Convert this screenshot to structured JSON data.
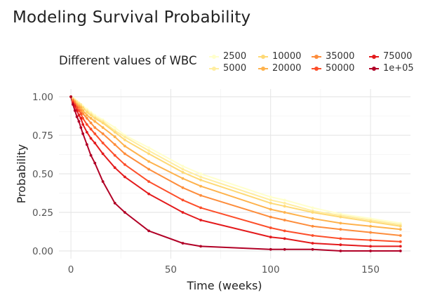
{
  "chart_data": {
    "type": "line",
    "title": "Modeling Survival Probability",
    "xlabel": "Time (weeks)",
    "ylabel": "Probability",
    "xlim": [
      -6,
      170
    ],
    "ylim": [
      -0.05,
      1.05
    ],
    "xticks": [
      0,
      50,
      100,
      150
    ],
    "xtick_labels": [
      "0",
      "50",
      "100",
      "150"
    ],
    "yticks": [
      0,
      0.25,
      0.5,
      0.75,
      1
    ],
    "ytick_labels": [
      "0.00",
      "0.25",
      "0.50",
      "0.75",
      "1.00"
    ],
    "grid": true,
    "legend": {
      "title": "Different values of WBC",
      "position": "top"
    },
    "x": [
      0,
      1,
      2,
      3,
      4,
      5,
      6,
      8,
      10,
      12,
      16,
      22,
      27,
      39,
      56,
      65,
      100,
      107,
      121,
      135,
      150,
      165
    ],
    "series": [
      {
        "name": "2500",
        "color": "#ffffcc",
        "values": [
          1.0,
          0.99,
          0.98,
          0.97,
          0.96,
          0.95,
          0.94,
          0.92,
          0.9,
          0.88,
          0.85,
          0.8,
          0.75,
          0.67,
          0.55,
          0.5,
          0.35,
          0.33,
          0.28,
          0.24,
          0.21,
          0.18
        ]
      },
      {
        "name": "5000",
        "color": "#ffeda0",
        "values": [
          1.0,
          0.99,
          0.98,
          0.97,
          0.96,
          0.95,
          0.93,
          0.91,
          0.89,
          0.87,
          0.84,
          0.78,
          0.74,
          0.65,
          0.53,
          0.48,
          0.33,
          0.31,
          0.26,
          0.23,
          0.2,
          0.17
        ]
      },
      {
        "name": "10000",
        "color": "#fed976",
        "values": [
          1.0,
          0.98,
          0.97,
          0.96,
          0.95,
          0.94,
          0.93,
          0.9,
          0.88,
          0.86,
          0.83,
          0.77,
          0.72,
          0.63,
          0.51,
          0.46,
          0.31,
          0.29,
          0.25,
          0.22,
          0.19,
          0.16
        ]
      },
      {
        "name": "20000",
        "color": "#feb24c",
        "values": [
          1.0,
          0.98,
          0.97,
          0.95,
          0.94,
          0.93,
          0.91,
          0.88,
          0.86,
          0.84,
          0.8,
          0.74,
          0.68,
          0.58,
          0.47,
          0.42,
          0.27,
          0.25,
          0.21,
          0.18,
          0.16,
          0.14
        ]
      },
      {
        "name": "35000",
        "color": "#fd8d3c",
        "values": [
          1.0,
          0.98,
          0.96,
          0.94,
          0.93,
          0.91,
          0.89,
          0.86,
          0.83,
          0.8,
          0.76,
          0.69,
          0.63,
          0.53,
          0.41,
          0.36,
          0.22,
          0.2,
          0.16,
          0.14,
          0.12,
          0.1
        ]
      },
      {
        "name": "50000",
        "color": "#fc4e2a",
        "values": [
          1.0,
          0.97,
          0.95,
          0.93,
          0.91,
          0.89,
          0.86,
          0.82,
          0.79,
          0.76,
          0.7,
          0.62,
          0.56,
          0.45,
          0.33,
          0.28,
          0.15,
          0.13,
          0.1,
          0.08,
          0.07,
          0.06
        ]
      },
      {
        "name": "75000",
        "color": "#e31a1c",
        "values": [
          1.0,
          0.96,
          0.94,
          0.91,
          0.88,
          0.86,
          0.82,
          0.77,
          0.73,
          0.7,
          0.63,
          0.54,
          0.48,
          0.37,
          0.25,
          0.2,
          0.09,
          0.08,
          0.05,
          0.04,
          0.03,
          0.03
        ]
      },
      {
        "name": "1e+05",
        "color": "#b10026",
        "values": [
          1.0,
          0.95,
          0.91,
          0.87,
          0.84,
          0.8,
          0.76,
          0.69,
          0.62,
          0.57,
          0.45,
          0.31,
          0.25,
          0.13,
          0.05,
          0.03,
          0.01,
          0.01,
          0.01,
          0.0,
          0.0,
          0.0
        ]
      }
    ]
  }
}
